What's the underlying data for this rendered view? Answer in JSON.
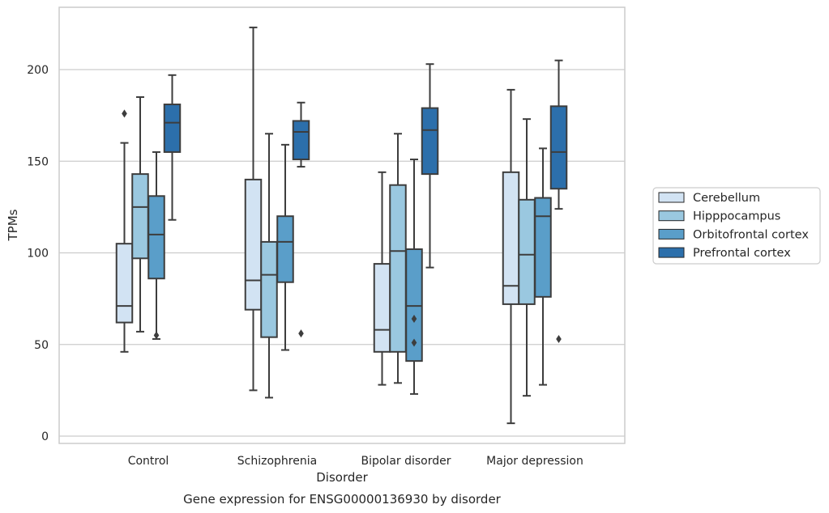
{
  "chart_data": {
    "type": "boxplot",
    "title": "Gene expression for ENSG00000136930 by disorder",
    "xlabel": "Disorder",
    "ylabel": "TPMs",
    "categories": [
      "Control",
      "Schizophrenia",
      "Bipolar disorder",
      "Major depression"
    ],
    "ylim": [
      -4,
      235
    ],
    "yticks": [
      0,
      50,
      100,
      150,
      200
    ],
    "grid": true,
    "legend_position": "right",
    "series": [
      {
        "name": "Cerebellum",
        "color": "#d2e3f3",
        "boxes": [
          {
            "whislo": 46,
            "q1": 62,
            "med": 71,
            "q3": 105,
            "whishi": 160,
            "fliers": [
              176
            ]
          },
          {
            "whislo": 25,
            "q1": 69,
            "med": 85,
            "q3": 140,
            "whishi": 223,
            "fliers": []
          },
          {
            "whislo": 28,
            "q1": 46,
            "med": 58,
            "q3": 94,
            "whishi": 144,
            "fliers": []
          },
          {
            "whislo": 7,
            "q1": 72,
            "med": 82,
            "q3": 144,
            "whishi": 189,
            "fliers": []
          }
        ]
      },
      {
        "name": "Hipppocampus",
        "color": "#9ac8e0",
        "boxes": [
          {
            "whislo": 57,
            "q1": 97,
            "med": 125,
            "q3": 143,
            "whishi": 185,
            "fliers": []
          },
          {
            "whislo": 21,
            "q1": 54,
            "med": 88,
            "q3": 106,
            "whishi": 165,
            "fliers": []
          },
          {
            "whislo": 29,
            "q1": 46,
            "med": 101,
            "q3": 137,
            "whishi": 165,
            "fliers": []
          },
          {
            "whislo": 22,
            "q1": 72,
            "med": 99,
            "q3": 129,
            "whishi": 173,
            "fliers": []
          }
        ]
      },
      {
        "name": "Orbitofrontal cortex",
        "color": "#5a9ec9",
        "boxes": [
          {
            "whislo": 53,
            "q1": 86,
            "med": 110,
            "q3": 131,
            "whishi": 155,
            "fliers": [
              55
            ]
          },
          {
            "whislo": 47,
            "q1": 84,
            "med": 106,
            "q3": 120,
            "whishi": 159,
            "fliers": []
          },
          {
            "whislo": 23,
            "q1": 41,
            "med": 71,
            "q3": 102,
            "whishi": 151,
            "fliers": [
              51,
              64
            ]
          },
          {
            "whislo": 28,
            "q1": 76,
            "med": 120,
            "q3": 130,
            "whishi": 157,
            "fliers": []
          }
        ]
      },
      {
        "name": "Prefrontal cortex",
        "color": "#2c6fab",
        "boxes": [
          {
            "whislo": 118,
            "q1": 155,
            "med": 171,
            "q3": 181,
            "whishi": 197,
            "fliers": []
          },
          {
            "whislo": 147,
            "q1": 151,
            "med": 166,
            "q3": 172,
            "whishi": 182,
            "fliers": [
              56
            ]
          },
          {
            "whislo": 92,
            "q1": 143,
            "med": 167,
            "q3": 179,
            "whishi": 203,
            "fliers": []
          },
          {
            "whislo": 124,
            "q1": 135,
            "med": 155,
            "q3": 180,
            "whishi": 205,
            "fliers": [
              53
            ]
          }
        ]
      }
    ]
  }
}
